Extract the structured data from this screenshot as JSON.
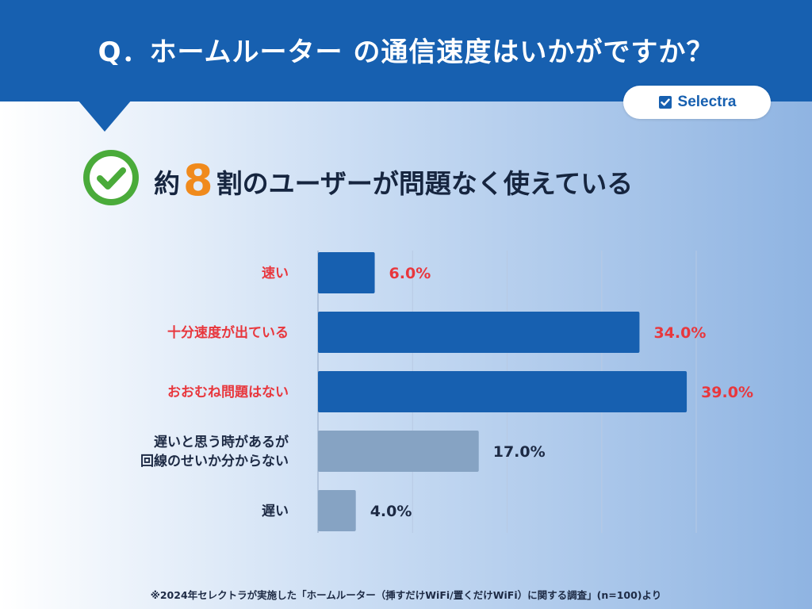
{
  "header": {
    "title": "Q．ホームルーター の通信速度はいかがですか？"
  },
  "brand": {
    "name": "Selectra"
  },
  "headline": {
    "prefix": "約",
    "number": "8",
    "suffix": "割のユーザーが問題なく使えている"
  },
  "chart_data": {
    "type": "bar",
    "orientation": "horizontal",
    "categories": [
      [
        "速い"
      ],
      [
        "十分速度が出ている"
      ],
      [
        "おおむね問題はない"
      ],
      [
        "遅いと思う時があるが",
        "回線のせいか分からない"
      ],
      [
        "遅い"
      ]
    ],
    "values": [
      6.0,
      34.0,
      39.0,
      17.0,
      4.0
    ],
    "value_labels": [
      "6.0%",
      "34.0%",
      "39.0%",
      "17.0%",
      "4.0%"
    ],
    "xlim": [
      0,
      40
    ],
    "grid": true,
    "colors": {
      "positive": "#1760b0",
      "negative": "#86a3c3",
      "positive_text": "#e8373d",
      "negative_text": "#1d2a44"
    },
    "positive_count": 3
  },
  "footnote": "※2024年セレクトラが実施した「ホームルーター（挿すだけWiFi/置くだけWiFi）に関する調査」(n=100)より"
}
